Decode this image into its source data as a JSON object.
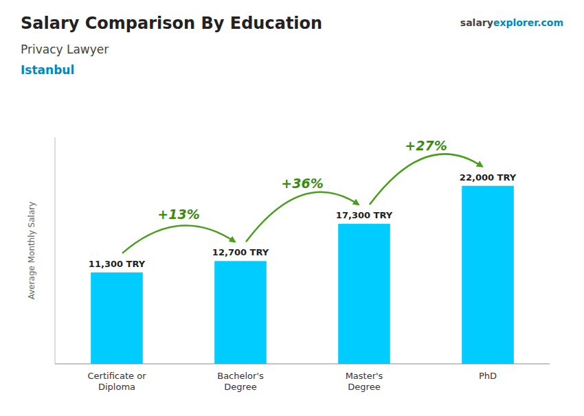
{
  "chart_data": {
    "type": "bar",
    "title": "Salary Comparison By Education",
    "subtitles": [
      "Privacy Lawyer",
      "Istanbul"
    ],
    "source": [
      "salary",
      "explorer.com"
    ],
    "ylabel": "Average Monthly Salary",
    "categories": [
      "Certificate or\nDiploma",
      "Bachelor's\nDegree",
      "Master's\nDegree",
      "PhD"
    ],
    "values": [
      11300,
      12700,
      17300,
      22000
    ],
    "value_labels": [
      "11,300 TRY",
      "12,700 TRY",
      "17,300 TRY",
      "22,000 TRY"
    ],
    "data_labels": true,
    "annotations": [
      "+13%",
      "+36%",
      "+27%"
    ],
    "color": "#00ccff",
    "ylim": [
      0,
      28000
    ],
    "yticks": [],
    "grid": false,
    "tick_labels": "x"
  }
}
